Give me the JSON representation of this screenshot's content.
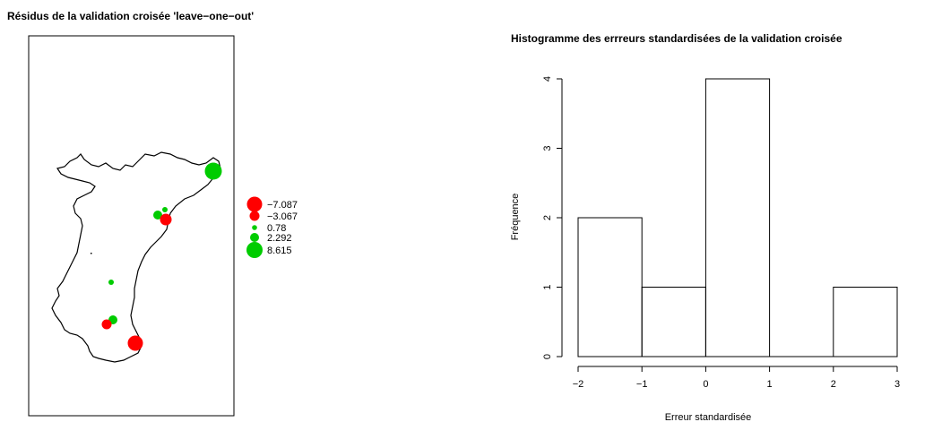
{
  "chart_data": [
    {
      "type": "scatter",
      "title": "Résidus de la validation croisée 'leave−one−out'",
      "map_outline": true,
      "legend_position": "right",
      "legend": {
        "entries": [
          {
            "label": "−7.087",
            "color": "#ff0000",
            "size": "large"
          },
          {
            "label": "−3.067",
            "color": "#ff0000",
            "size": "medium"
          },
          {
            "label": "0.78",
            "color": "#00cc00",
            "size": "small"
          },
          {
            "label": "2.292",
            "color": "#00cc00",
            "size": "medium"
          },
          {
            "label": "8.615",
            "color": "#00cc00",
            "size": "large"
          }
        ]
      },
      "colors": {
        "negative": "#ff0000",
        "positive": "#00cc00"
      }
    },
    {
      "type": "bar",
      "title": "Histogramme des errreurs standardisées de la validation croisée",
      "xlabel": "Erreur standardisée",
      "ylabel": "Fréquence",
      "bins": [
        {
          "from": -2,
          "to": -1,
          "count": 2
        },
        {
          "from": -1,
          "to": 0,
          "count": 1
        },
        {
          "from": 0,
          "to": 1,
          "count": 4
        },
        {
          "from": 1,
          "to": 2,
          "count": 0
        },
        {
          "from": 2,
          "to": 3,
          "count": 1
        }
      ],
      "xticks": [
        "−2",
        "−1",
        "0",
        "1",
        "2",
        "3"
      ],
      "yticks": [
        "0",
        "1",
        "2",
        "3",
        "4"
      ],
      "xlim": [
        -2,
        3
      ],
      "ylim": [
        0,
        4
      ]
    }
  ]
}
